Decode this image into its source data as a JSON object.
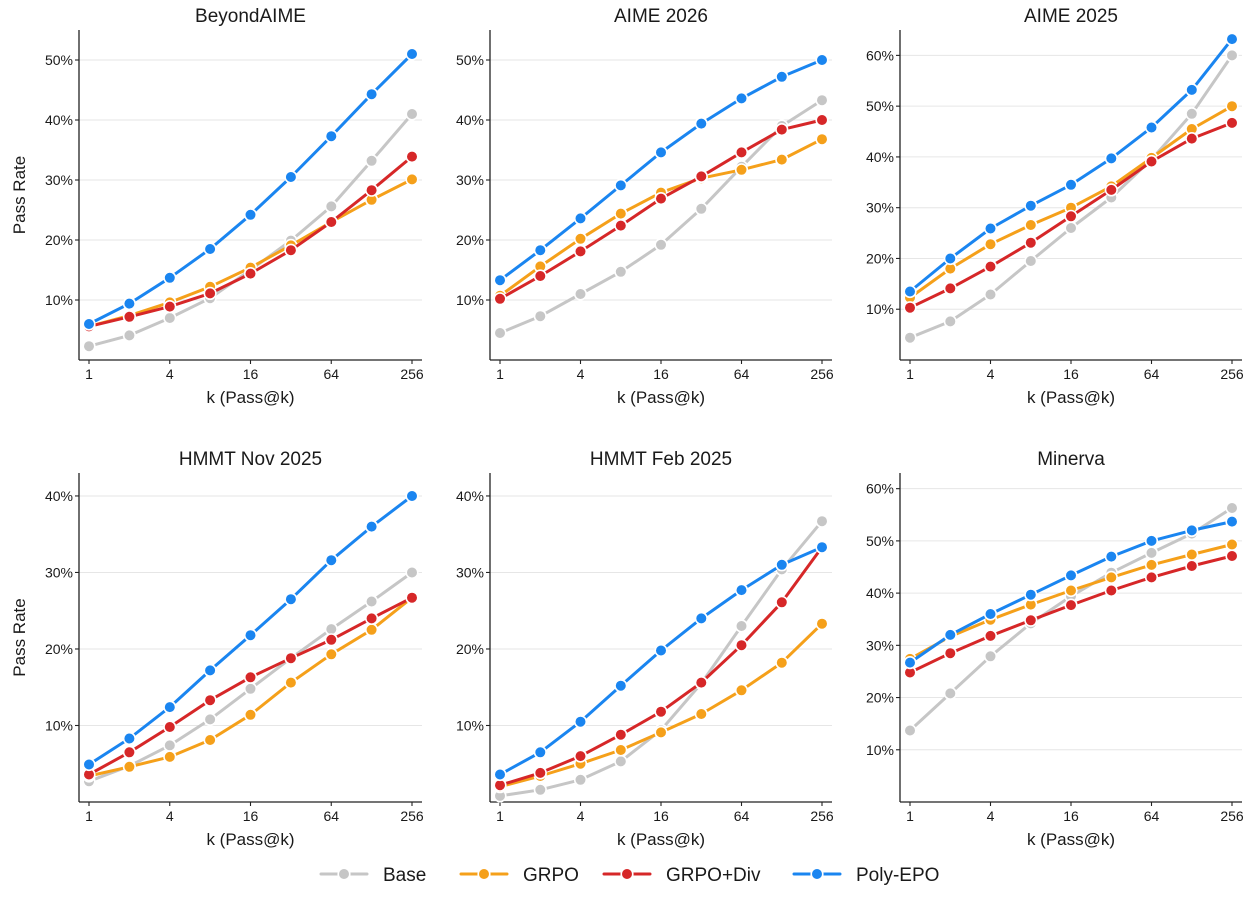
{
  "legend": {
    "placement": "bottom-center",
    "items": [
      {
        "name": "Base",
        "color": "#c6c6c6"
      },
      {
        "name": "GRPO",
        "color": "#f5a01a"
      },
      {
        "name": "GRPO+Div",
        "color": "#d62728"
      },
      {
        "name": "Poly-EPO",
        "color": "#1a85f0"
      }
    ]
  },
  "chart_data": [
    {
      "type": "line",
      "title": "BeyondAIME",
      "xlabel": "k (Pass@k)",
      "ylabel": "Pass Rate",
      "x": [
        1,
        2,
        4,
        8,
        16,
        32,
        64,
        128,
        256
      ],
      "x_scale": "log2",
      "x_ticks": [
        "1",
        "4",
        "16",
        "64",
        "256"
      ],
      "y_ticks": [
        "10%",
        "20%",
        "30%",
        "40%",
        "50%"
      ],
      "ylim": [
        0,
        55
      ],
      "grid": "horizontal",
      "series": [
        {
          "name": "Base",
          "color": "#c6c6c6",
          "values": [
            2.3,
            4.1,
            7.0,
            10.3,
            15.0,
            19.9,
            25.6,
            33.2,
            41.0
          ]
        },
        {
          "name": "GRPO",
          "color": "#f5a01a",
          "values": [
            5.6,
            7.4,
            9.6,
            12.2,
            15.4,
            19.1,
            23.0,
            26.7,
            30.1
          ]
        },
        {
          "name": "GRPO+Div",
          "color": "#d62728",
          "values": [
            5.6,
            7.2,
            8.9,
            11.1,
            14.4,
            18.3,
            23.0,
            28.3,
            33.9
          ]
        },
        {
          "name": "Poly-EPO",
          "color": "#1a85f0",
          "values": [
            6.0,
            9.4,
            13.7,
            18.5,
            24.2,
            30.5,
            37.3,
            44.3,
            51.0
          ]
        }
      ]
    },
    {
      "type": "line",
      "title": "AIME 2026",
      "xlabel": "k (Pass@k)",
      "ylabel": "",
      "x": [
        1,
        2,
        4,
        8,
        16,
        32,
        64,
        128,
        256
      ],
      "x_scale": "log2",
      "x_ticks": [
        "1",
        "4",
        "16",
        "64",
        "256"
      ],
      "y_ticks": [
        "10%",
        "20%",
        "30%",
        "40%",
        "50%"
      ],
      "ylim": [
        0,
        55
      ],
      "grid": "horizontal",
      "series": [
        {
          "name": "Base",
          "color": "#c6c6c6",
          "values": [
            4.5,
            7.3,
            11.0,
            14.7,
            19.2,
            25.2,
            32.2,
            39.0,
            43.3
          ]
        },
        {
          "name": "GRPO",
          "color": "#f5a01a",
          "values": [
            10.7,
            15.6,
            20.2,
            24.4,
            27.9,
            30.3,
            31.7,
            33.4,
            36.8
          ]
        },
        {
          "name": "GRPO+Div",
          "color": "#d62728",
          "values": [
            10.2,
            14.0,
            18.1,
            22.4,
            26.9,
            30.6,
            34.6,
            38.4,
            40.0
          ]
        },
        {
          "name": "Poly-EPO",
          "color": "#1a85f0",
          "values": [
            13.3,
            18.3,
            23.6,
            29.1,
            34.6,
            39.4,
            43.6,
            47.2,
            50.0
          ]
        }
      ]
    },
    {
      "type": "line",
      "title": "AIME 2025",
      "xlabel": "k (Pass@k)",
      "ylabel": "",
      "x": [
        1,
        2,
        4,
        8,
        16,
        32,
        64,
        128,
        256
      ],
      "x_scale": "log2",
      "x_ticks": [
        "1",
        "4",
        "16",
        "64",
        "256"
      ],
      "y_ticks": [
        "10%",
        "20%",
        "30%",
        "40%",
        "50%",
        "60%"
      ],
      "ylim": [
        0,
        65
      ],
      "grid": "horizontal",
      "series": [
        {
          "name": "Base",
          "color": "#c6c6c6",
          "values": [
            4.4,
            7.6,
            12.9,
            19.5,
            26.0,
            32.0,
            39.5,
            48.5,
            60.0
          ]
        },
        {
          "name": "GRPO",
          "color": "#f5a01a",
          "values": [
            12.3,
            18.0,
            22.8,
            26.6,
            30.0,
            34.2,
            39.8,
            45.5,
            50.0
          ]
        },
        {
          "name": "GRPO+Div",
          "color": "#d62728",
          "values": [
            10.3,
            14.1,
            18.4,
            23.1,
            28.3,
            33.5,
            39.1,
            43.6,
            46.7
          ]
        },
        {
          "name": "Poly-EPO",
          "color": "#1a85f0",
          "values": [
            13.5,
            20.0,
            25.9,
            30.4,
            34.5,
            39.7,
            45.8,
            53.2,
            63.2
          ]
        }
      ]
    },
    {
      "type": "line",
      "title": "HMMT Nov 2025",
      "xlabel": "k (Pass@k)",
      "ylabel": "Pass Rate",
      "x": [
        1,
        2,
        4,
        8,
        16,
        32,
        64,
        128,
        256
      ],
      "x_scale": "log2",
      "x_ticks": [
        "1",
        "4",
        "16",
        "64",
        "256"
      ],
      "y_ticks": [
        "10%",
        "20%",
        "30%",
        "40%"
      ],
      "ylim": [
        0,
        43
      ],
      "grid": "horizontal",
      "series": [
        {
          "name": "Base",
          "color": "#c6c6c6",
          "values": [
            2.7,
            4.7,
            7.4,
            10.8,
            14.8,
            18.8,
            22.6,
            26.2,
            30.0
          ]
        },
        {
          "name": "GRPO",
          "color": "#f5a01a",
          "values": [
            3.4,
            4.6,
            5.9,
            8.1,
            11.4,
            15.6,
            19.3,
            22.5,
            26.7
          ]
        },
        {
          "name": "GRPO+Div",
          "color": "#d62728",
          "values": [
            3.6,
            6.5,
            9.8,
            13.3,
            16.3,
            18.8,
            21.2,
            24.0,
            26.7
          ]
        },
        {
          "name": "Poly-EPO",
          "color": "#1a85f0",
          "values": [
            4.9,
            8.3,
            12.4,
            17.2,
            21.8,
            26.5,
            31.6,
            36.0,
            40.0
          ]
        }
      ]
    },
    {
      "type": "line",
      "title": "HMMT Feb 2025",
      "xlabel": "k (Pass@k)",
      "ylabel": "",
      "x": [
        1,
        2,
        4,
        8,
        16,
        32,
        64,
        128,
        256
      ],
      "x_scale": "log2",
      "x_ticks": [
        "1",
        "4",
        "16",
        "64",
        "256"
      ],
      "y_ticks": [
        "10%",
        "20%",
        "30%",
        "40%"
      ],
      "ylim": [
        0,
        43
      ],
      "grid": "horizontal",
      "series": [
        {
          "name": "Base",
          "color": "#c6c6c6",
          "values": [
            0.8,
            1.6,
            2.9,
            5.3,
            9.4,
            15.5,
            23.0,
            30.4,
            36.7
          ]
        },
        {
          "name": "GRPO",
          "color": "#f5a01a",
          "values": [
            2.0,
            3.4,
            5.0,
            6.8,
            9.1,
            11.5,
            14.6,
            18.2,
            23.3
          ]
        },
        {
          "name": "GRPO+Div",
          "color": "#d62728",
          "values": [
            2.2,
            3.8,
            6.0,
            8.8,
            11.8,
            15.6,
            20.5,
            26.1,
            33.3
          ]
        },
        {
          "name": "Poly-EPO",
          "color": "#1a85f0",
          "values": [
            3.6,
            6.5,
            10.5,
            15.2,
            19.8,
            24.0,
            27.7,
            31.0,
            33.3
          ]
        }
      ]
    },
    {
      "type": "line",
      "title": "Minerva",
      "xlabel": "k (Pass@k)",
      "ylabel": "",
      "x": [
        1,
        2,
        4,
        8,
        16,
        32,
        64,
        128,
        256
      ],
      "x_scale": "log2",
      "x_ticks": [
        "1",
        "4",
        "16",
        "64",
        "256"
      ],
      "y_ticks": [
        "10%",
        "20%",
        "30%",
        "40%",
        "50%",
        "60%"
      ],
      "ylim": [
        0,
        63
      ],
      "grid": "horizontal",
      "series": [
        {
          "name": "Base",
          "color": "#c6c6c6",
          "values": [
            13.7,
            20.8,
            27.9,
            34.2,
            39.4,
            43.9,
            47.7,
            51.4,
            56.3
          ]
        },
        {
          "name": "GRPO",
          "color": "#f5a01a",
          "values": [
            27.4,
            31.7,
            34.9,
            37.8,
            40.5,
            43.0,
            45.4,
            47.4,
            49.3
          ]
        },
        {
          "name": "GRPO+Div",
          "color": "#d62728",
          "values": [
            24.8,
            28.5,
            31.8,
            34.8,
            37.7,
            40.5,
            43.0,
            45.2,
            47.1
          ]
        },
        {
          "name": "Poly-EPO",
          "color": "#1a85f0",
          "values": [
            26.7,
            32.0,
            36.0,
            39.7,
            43.4,
            47.0,
            50.0,
            52.0,
            53.7
          ]
        }
      ]
    }
  ]
}
